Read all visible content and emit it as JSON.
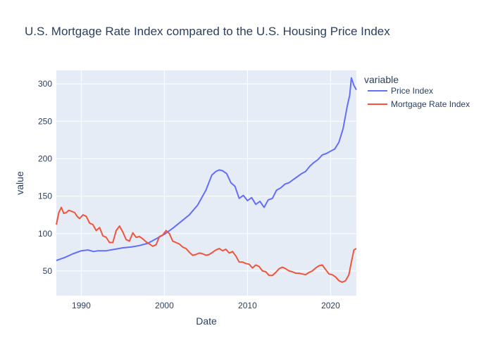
{
  "chart_data": {
    "type": "line",
    "title": "U.S. Mortgage Rate Index compared to the U.S. Housing Price Index",
    "xlabel": "Date",
    "ylabel": "value",
    "legend_title": "variable",
    "legend_position": "right",
    "grid": true,
    "xlim": [
      1987.0,
      2023.1
    ],
    "ylim": [
      17,
      318
    ],
    "x_ticks": [
      1990,
      2000,
      2010,
      2020
    ],
    "x_tick_labels": [
      "1990",
      "2000",
      "2010",
      "2020"
    ],
    "y_ticks": [
      50,
      100,
      150,
      200,
      250,
      300
    ],
    "y_tick_labels": [
      "50",
      "100",
      "150",
      "200",
      "250",
      "300"
    ],
    "series": [
      {
        "name": "Price Index",
        "color": "#636efa",
        "x": [
          1987.0,
          1988.0,
          1989.0,
          1990.0,
          1990.8,
          1991.5,
          1992.0,
          1993.0,
          1994.0,
          1995.0,
          1996.0,
          1997.0,
          1998.0,
          1999.0,
          2000.0,
          2001.0,
          2002.0,
          2003.0,
          2004.0,
          2005.0,
          2005.7,
          2006.2,
          2006.6,
          2007.0,
          2007.5,
          2008.0,
          2008.5,
          2009.0,
          2009.5,
          2010.0,
          2010.5,
          2011.0,
          2011.5,
          2012.0,
          2012.5,
          2013.0,
          2013.5,
          2014.0,
          2014.5,
          2015.0,
          2015.5,
          2016.0,
          2016.5,
          2017.0,
          2017.5,
          2018.0,
          2018.5,
          2019.0,
          2019.5,
          2020.0,
          2020.5,
          2021.0,
          2021.5,
          2022.0,
          2022.3,
          2022.5,
          2022.8,
          2023.1
        ],
        "values": [
          64,
          68,
          73,
          77,
          78,
          76,
          77,
          77,
          79,
          81,
          82,
          84,
          87,
          93,
          99,
          107,
          116,
          125,
          138,
          158,
          178,
          183,
          185,
          184,
          180,
          168,
          163,
          147,
          151,
          144,
          148,
          139,
          143,
          135,
          145,
          147,
          158,
          161,
          166,
          168,
          172,
          176,
          180,
          183,
          190,
          195,
          199,
          205,
          207,
          210,
          213,
          222,
          240,
          270,
          285,
          308,
          298,
          292
        ]
      },
      {
        "name": "Mortgage Rate Index",
        "color": "#ef553b",
        "x": [
          1987.0,
          1987.3,
          1987.6,
          1987.9,
          1988.2,
          1988.5,
          1988.8,
          1989.2,
          1989.5,
          1989.8,
          1990.2,
          1990.6,
          1991.0,
          1991.4,
          1991.8,
          1992.2,
          1992.6,
          1993.0,
          1993.4,
          1993.8,
          1994.2,
          1994.6,
          1995.0,
          1995.4,
          1995.8,
          1996.2,
          1996.6,
          1997.0,
          1997.4,
          1997.8,
          1998.2,
          1998.6,
          1999.0,
          1999.4,
          1999.8,
          2000.2,
          2000.6,
          2001.0,
          2001.4,
          2001.8,
          2002.2,
          2002.6,
          2003.0,
          2003.4,
          2003.8,
          2004.2,
          2004.6,
          2005.0,
          2005.4,
          2005.8,
          2006.2,
          2006.6,
          2007.0,
          2007.4,
          2007.8,
          2008.2,
          2008.6,
          2009.0,
          2009.4,
          2009.8,
          2010.2,
          2010.6,
          2011.0,
          2011.4,
          2011.8,
          2012.2,
          2012.6,
          2013.0,
          2013.4,
          2013.8,
          2014.2,
          2014.6,
          2015.0,
          2015.4,
          2015.8,
          2016.2,
          2016.6,
          2017.0,
          2017.4,
          2017.8,
          2018.2,
          2018.6,
          2019.0,
          2019.4,
          2019.8,
          2020.2,
          2020.6,
          2021.0,
          2021.4,
          2021.8,
          2022.2,
          2022.5,
          2022.8,
          2023.1
        ],
        "values": [
          112,
          128,
          135,
          127,
          128,
          131,
          130,
          128,
          123,
          120,
          125,
          123,
          114,
          112,
          104,
          108,
          97,
          95,
          88,
          88,
          104,
          110,
          102,
          92,
          90,
          101,
          95,
          96,
          93,
          89,
          86,
          83,
          85,
          96,
          98,
          104,
          100,
          90,
          88,
          86,
          82,
          80,
          75,
          71,
          72,
          74,
          73,
          71,
          72,
          75,
          78,
          80,
          77,
          79,
          74,
          76,
          70,
          62,
          62,
          60,
          59,
          54,
          58,
          56,
          50,
          49,
          44,
          44,
          48,
          53,
          55,
          53,
          50,
          49,
          47,
          47,
          46,
          45,
          48,
          50,
          54,
          57,
          58,
          52,
          46,
          45,
          42,
          37,
          35,
          37,
          45,
          62,
          78,
          80
        ]
      }
    ]
  }
}
